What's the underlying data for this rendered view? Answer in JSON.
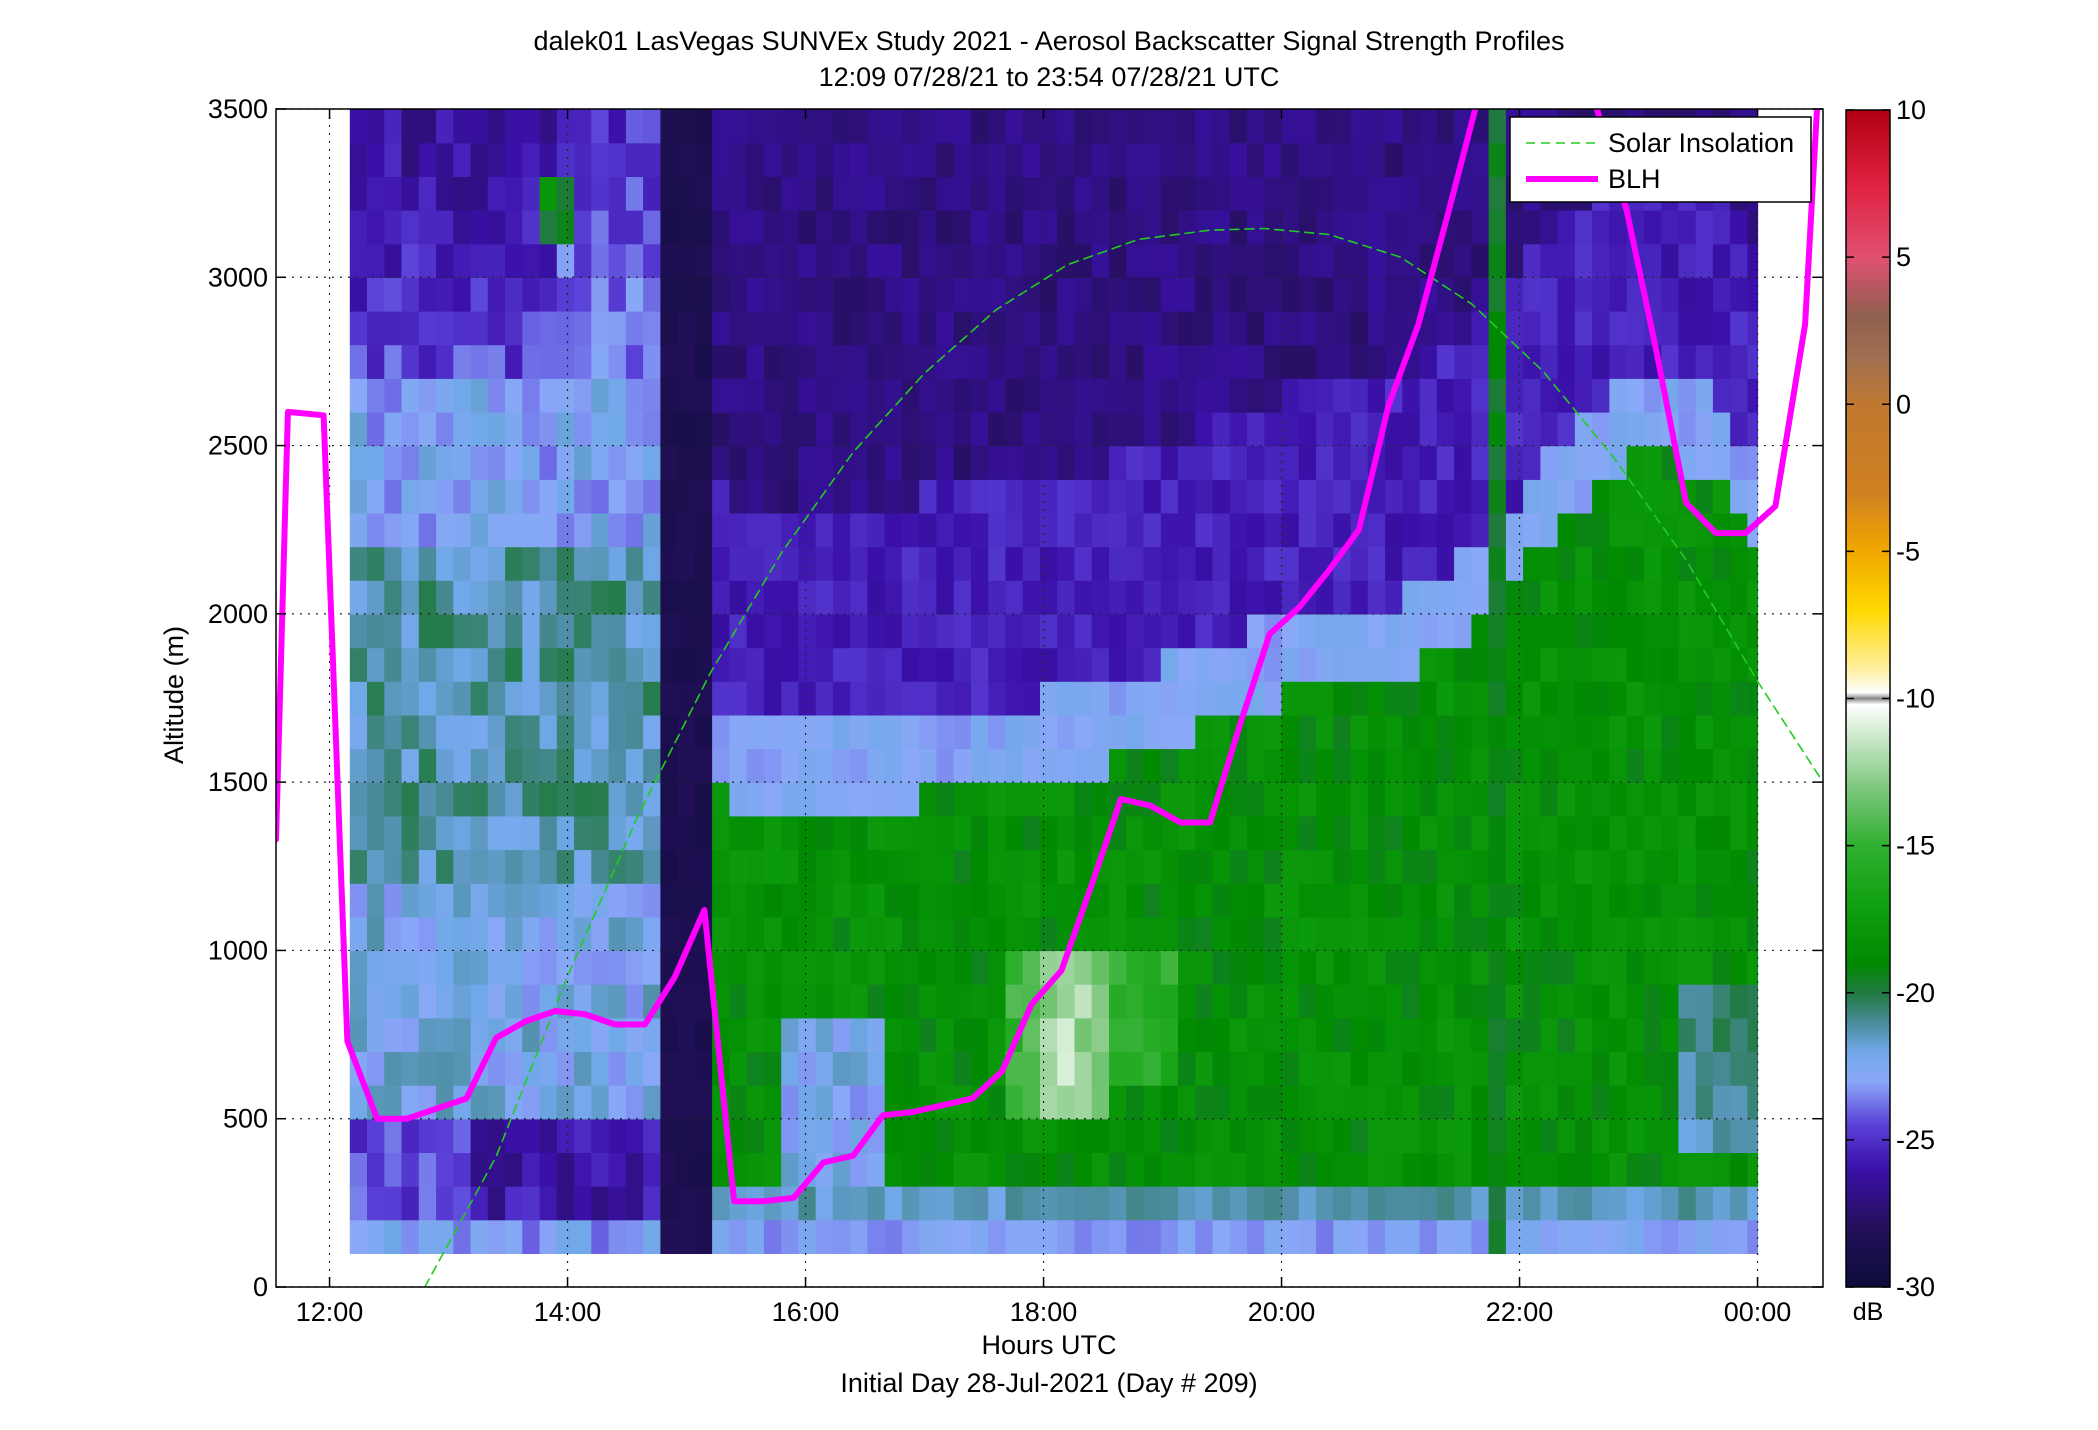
{
  "chart_data": {
    "type": "heatmap",
    "title": "dalek01 LasVegas SUNVEx Study 2021 - Aerosol Backscatter Signal Strength Profiles",
    "subtitle": "12:09 07/28/21 to 23:54 07/28/21  UTC",
    "xlabel": "Hours UTC",
    "xlabel2": "Initial Day 28-Jul-2021 (Day # 209)",
    "ylabel": "Altitude (m)",
    "xlim": [
      11.55,
      24.55
    ],
    "ylim": [
      0,
      3500
    ],
    "x_ticks": [
      {
        "value": 12,
        "label": "12:00"
      },
      {
        "value": 14,
        "label": "14:00"
      },
      {
        "value": 16,
        "label": "16:00"
      },
      {
        "value": 18,
        "label": "18:00"
      },
      {
        "value": 20,
        "label": "20:00"
      },
      {
        "value": 22,
        "label": "22:00"
      },
      {
        "value": 24,
        "label": "00:00"
      }
    ],
    "y_ticks": [
      {
        "value": 0,
        "label": "0"
      },
      {
        "value": 500,
        "label": "500"
      },
      {
        "value": 1000,
        "label": "1000"
      },
      {
        "value": 1500,
        "label": "1500"
      },
      {
        "value": 2000,
        "label": "2000"
      },
      {
        "value": 2500,
        "label": "2500"
      },
      {
        "value": 3000,
        "label": "3000"
      },
      {
        "value": 3500,
        "label": "3500"
      }
    ],
    "grid": true,
    "colorbar": {
      "label": "dB",
      "range": [
        -30,
        10
      ],
      "ticks": [
        {
          "value": 10,
          "label": "10"
        },
        {
          "value": 5,
          "label": "5"
        },
        {
          "value": 0,
          "label": "0"
        },
        {
          "value": -5,
          "label": "-5"
        },
        {
          "value": -10,
          "label": "-10"
        },
        {
          "value": -15,
          "label": "-15"
        },
        {
          "value": -20,
          "label": "-20"
        },
        {
          "value": -25,
          "label": "-25"
        },
        {
          "value": -30,
          "label": "-30"
        }
      ],
      "stops": [
        {
          "value": -30,
          "color": "#0c0c3a"
        },
        {
          "value": -28,
          "color": "#24105a"
        },
        {
          "value": -26,
          "color": "#3a10a8"
        },
        {
          "value": -24.5,
          "color": "#5a40d8"
        },
        {
          "value": -23,
          "color": "#8aa8f8"
        },
        {
          "value": -22,
          "color": "#70a8e8"
        },
        {
          "value": -21,
          "color": "#4a8a9a"
        },
        {
          "value": -20,
          "color": "#207a40"
        },
        {
          "value": -19,
          "color": "#008a00"
        },
        {
          "value": -17,
          "color": "#10a010"
        },
        {
          "value": -15,
          "color": "#30b030"
        },
        {
          "value": -13,
          "color": "#80c880"
        },
        {
          "value": -11,
          "color": "#d8eed8"
        },
        {
          "value": -10.2,
          "color": "#ffffff"
        },
        {
          "value": -10,
          "color": "#888888"
        },
        {
          "value": -9.8,
          "color": "#ffffff"
        },
        {
          "value": -9,
          "color": "#fff0a0"
        },
        {
          "value": -7,
          "color": "#ffd800"
        },
        {
          "value": -5,
          "color": "#f0a800"
        },
        {
          "value": -3,
          "color": "#d08020"
        },
        {
          "value": 0,
          "color": "#c07830"
        },
        {
          "value": 1.5,
          "color": "#a07050"
        },
        {
          "value": 3,
          "color": "#906050"
        },
        {
          "value": 5,
          "color": "#e05070"
        },
        {
          "value": 7.5,
          "color": "#e02040"
        },
        {
          "value": 10,
          "color": "#b00010"
        }
      ]
    },
    "heatmap": {
      "x_start": 12.17,
      "x_step": 0.145,
      "y_start": 100,
      "y_step": 100,
      "time_range": [
        12.17,
        24.0
      ],
      "altitude_range": [
        100,
        3500
      ],
      "value_units": "dB",
      "notes": "Backscatter field: weak (-28 dB) aloft, green (-18 dB) aerosol layer below ~1500-2000 m in afternoon, dark column ~14:45-15:15"
    },
    "series": [
      {
        "name": "Solar Insolation",
        "style": "dashed",
        "color": "#22cc22",
        "x": [
          12.8,
          13.4,
          14.0,
          14.6,
          15.2,
          15.8,
          16.4,
          17.0,
          17.6,
          18.2,
          18.8,
          19.4,
          19.85,
          20.4,
          21.0,
          21.6,
          22.2,
          22.8,
          23.4,
          24.0,
          24.55
        ],
        "y": [
          0,
          387,
          923,
          1406,
          1824,
          2183,
          2480,
          2715,
          2903,
          3037,
          3113,
          3140,
          3145,
          3127,
          3060,
          2920,
          2720,
          2460,
          2160,
          1800,
          1500
        ]
      },
      {
        "name": "BLH",
        "style": "solid",
        "color": "#ff00ff",
        "x": [
          11.55,
          11.65,
          11.95,
          12.15,
          12.4,
          12.65,
          12.9,
          13.15,
          13.4,
          13.65,
          13.9,
          14.15,
          14.4,
          14.65,
          14.9,
          15.15,
          15.4,
          15.65,
          15.9,
          16.15,
          16.4,
          16.65,
          16.9,
          17.15,
          17.4,
          17.65,
          17.9,
          18.15,
          18.4,
          18.65,
          18.9,
          19.15,
          19.4,
          19.65,
          19.9,
          20.15,
          20.4,
          20.65,
          20.9,
          21.15,
          21.4,
          21.65,
          21.9,
          22.15,
          22.4,
          22.65,
          22.9,
          23.15,
          23.4,
          23.65,
          23.9,
          24.15,
          24.4,
          24.5
        ],
        "y": [
          1330,
          2600,
          2590,
          730,
          500,
          500,
          530,
          560,
          740,
          790,
          820,
          810,
          780,
          780,
          920,
          1120,
          255,
          255,
          265,
          370,
          390,
          510,
          520,
          540,
          560,
          640,
          840,
          940,
          1190,
          1450,
          1430,
          1380,
          1380,
          1670,
          1940,
          2020,
          2130,
          2250,
          2620,
          2860,
          3190,
          3530,
          null,
          null,
          null,
          3500,
          3200,
          2780,
          2330,
          2240,
          2240,
          2320,
          2860,
          3500
        ]
      }
    ],
    "legend": {
      "position": "top-right",
      "entries": [
        "Solar Insolation",
        "BLH"
      ]
    }
  }
}
